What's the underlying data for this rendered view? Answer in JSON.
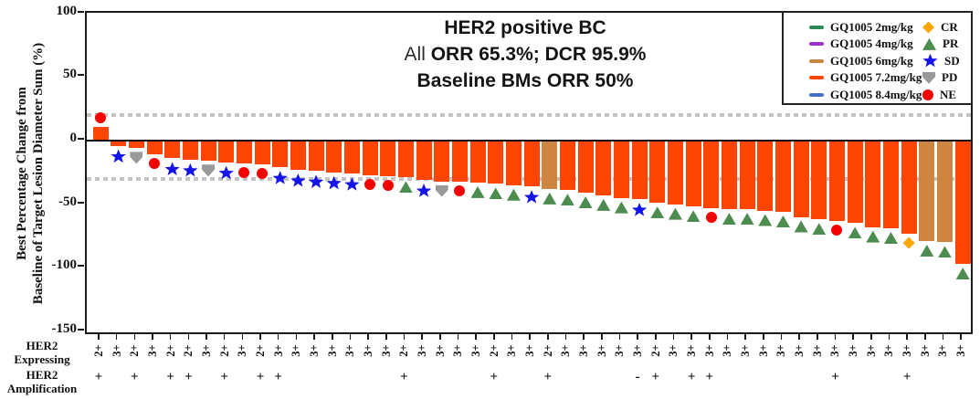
{
  "title": {
    "line1": "HER2 positive BC",
    "line2_highlight": "All",
    "line2_rest": " ORR 65.3%; DCR 95.9%",
    "line3": "Baseline BMs ORR 50%"
  },
  "y_axis": {
    "title_line1": "Best Percentage Change from",
    "title_line2": "Baseline of Target Lesion Diameter Sum (%)",
    "ticks": [
      "100",
      "50",
      "0",
      "-50",
      "-100",
      "-150"
    ]
  },
  "row_labels": {
    "expressing_line1": "HER2",
    "expressing_line2": "Expressing",
    "amplification_line1": "HER2",
    "amplification_line2": "Amplification"
  },
  "legend": {
    "doses": [
      {
        "label": "GQ1005 2mg/kg",
        "color": "#2E8B57"
      },
      {
        "label": "GQ1005 4mg/kg",
        "color": "#9932CC"
      },
      {
        "label": "GQ1005 6mg/kg",
        "color": "#CD853F"
      },
      {
        "label": "GQ1005 7.2mg/kg",
        "color": "#FF4500"
      },
      {
        "label": "GQ1005 8.4mg/kg",
        "color": "#4472C4"
      }
    ],
    "responses": [
      {
        "code": "CR",
        "shape": "diamond",
        "color": "#FFA500"
      },
      {
        "code": "PR",
        "shape": "triangle",
        "color": "#4C8C4F"
      },
      {
        "code": "SD",
        "shape": "star",
        "color": "#1414E8"
      },
      {
        "code": "PD",
        "shape": "pentagon-down",
        "color": "#999999"
      },
      {
        "code": "NE",
        "shape": "circle",
        "color": "#F40000"
      }
    ]
  },
  "chart_data": {
    "type": "bar",
    "title": "HER2 positive BC; All ORR 65.3%; DCR 95.9%; Baseline BMs ORR 50%",
    "ylabel": "Best Percentage Change from Baseline of Target Lesion Diameter Sum (%)",
    "ylim": [
      -150,
      100
    ],
    "grid": false,
    "legend_position": "top-right",
    "reference_lines": [
      20,
      -30
    ],
    "dose_colors": {
      "2": "#2E8B57",
      "4": "#9932CC",
      "6": "#CD853F",
      "7.2": "#FF4500",
      "8.4": "#4472C4"
    },
    "response_colors": {
      "CR": "#FFA500",
      "PR": "#4C8C4F",
      "SD": "#1414E8",
      "PD": "#999999",
      "NE": "#F40000"
    },
    "response_shapes": {
      "CR": "diamond",
      "PR": "triangle",
      "SD": "star",
      "PD": "pentagon-down",
      "NE": "circle"
    },
    "patients": [
      {
        "v": 11,
        "dose": "7.2",
        "resp": "NE",
        "her2": "2+",
        "amp": "+"
      },
      {
        "v": -4,
        "dose": "7.2",
        "resp": "SD",
        "her2": "3+",
        "amp": ""
      },
      {
        "v": -6,
        "dose": "7.2",
        "resp": "PD",
        "her2": "2+",
        "amp": "+"
      },
      {
        "v": -11,
        "dose": "7.2",
        "resp": "NE",
        "her2": "3+",
        "amp": ""
      },
      {
        "v": -14,
        "dose": "7.2",
        "resp": "SD",
        "her2": "2+",
        "amp": "+"
      },
      {
        "v": -15,
        "dose": "7.2",
        "resp": "SD",
        "her2": "2+",
        "amp": "+"
      },
      {
        "v": -16,
        "dose": "7.2",
        "resp": "PD",
        "her2": "3+",
        "amp": ""
      },
      {
        "v": -17,
        "dose": "7.2",
        "resp": "SD",
        "her2": "2+",
        "amp": "+"
      },
      {
        "v": -18,
        "dose": "7.2",
        "resp": "NE",
        "her2": "3+",
        "amp": ""
      },
      {
        "v": -19,
        "dose": "7.2",
        "resp": "NE",
        "her2": "2+",
        "amp": "+"
      },
      {
        "v": -21,
        "dose": "7.2",
        "resp": "SD",
        "her2": "3+",
        "amp": "+"
      },
      {
        "v": -23,
        "dose": "7.2",
        "resp": "SD",
        "her2": "3+",
        "amp": ""
      },
      {
        "v": -24,
        "dose": "7.2",
        "resp": "SD",
        "her2": "3+",
        "amp": ""
      },
      {
        "v": -25,
        "dose": "7.2",
        "resp": "SD",
        "her2": "3+",
        "amp": ""
      },
      {
        "v": -26,
        "dose": "7.2",
        "resp": "SD",
        "her2": "3+",
        "amp": ""
      },
      {
        "v": -27,
        "dose": "7.2",
        "resp": "NE",
        "her2": "3+",
        "amp": ""
      },
      {
        "v": -28,
        "dose": "7.2",
        "resp": "NE",
        "her2": "3+",
        "amp": ""
      },
      {
        "v": -29,
        "dose": "7.2",
        "resp": "PR",
        "her2": "2+",
        "amp": "+"
      },
      {
        "v": -31,
        "dose": "7.2",
        "resp": "SD",
        "her2": "3+",
        "amp": ""
      },
      {
        "v": -32,
        "dose": "7.2",
        "resp": "PD",
        "her2": "3+",
        "amp": ""
      },
      {
        "v": -32,
        "dose": "7.2",
        "resp": "NE",
        "her2": "3+",
        "amp": ""
      },
      {
        "v": -33,
        "dose": "7.2",
        "resp": "PR",
        "her2": "3+",
        "amp": ""
      },
      {
        "v": -34,
        "dose": "7.2",
        "resp": "PR",
        "her2": "2+",
        "amp": "+"
      },
      {
        "v": -35,
        "dose": "7.2",
        "resp": "PR",
        "her2": "3+",
        "amp": ""
      },
      {
        "v": -36,
        "dose": "7.2",
        "resp": "SD",
        "her2": "3+",
        "amp": ""
      },
      {
        "v": -38,
        "dose": "6",
        "resp": "PR",
        "her2": "2+",
        "amp": "+"
      },
      {
        "v": -39,
        "dose": "7.2",
        "resp": "PR",
        "her2": "3+",
        "amp": ""
      },
      {
        "v": -41,
        "dose": "7.2",
        "resp": "PR",
        "her2": "3+",
        "amp": ""
      },
      {
        "v": -43,
        "dose": "7.2",
        "resp": "PR",
        "her2": "3+",
        "amp": ""
      },
      {
        "v": -45,
        "dose": "7.2",
        "resp": "PR",
        "her2": "3+",
        "amp": ""
      },
      {
        "v": -46,
        "dose": "7.2",
        "resp": "SD",
        "her2": "3+",
        "amp": "-"
      },
      {
        "v": -49,
        "dose": "7.2",
        "resp": "PR",
        "her2": "2+",
        "amp": "+"
      },
      {
        "v": -50,
        "dose": "7.2",
        "resp": "PR",
        "her2": "3+",
        "amp": ""
      },
      {
        "v": -52,
        "dose": "7.2",
        "resp": "PR",
        "her2": "3+",
        "amp": "+"
      },
      {
        "v": -53,
        "dose": "7.2",
        "resp": "NE",
        "her2": "3+",
        "amp": "+"
      },
      {
        "v": -54,
        "dose": "7.2",
        "resp": "PR",
        "her2": "3+",
        "amp": ""
      },
      {
        "v": -54,
        "dose": "7.2",
        "resp": "PR",
        "her2": "3+",
        "amp": ""
      },
      {
        "v": -55,
        "dose": "7.2",
        "resp": "PR",
        "her2": "3+",
        "amp": ""
      },
      {
        "v": -56,
        "dose": "7.2",
        "resp": "PR",
        "her2": "3+",
        "amp": ""
      },
      {
        "v": -60,
        "dose": "7.2",
        "resp": "PR",
        "her2": "3+",
        "amp": ""
      },
      {
        "v": -62,
        "dose": "7.2",
        "resp": "PR",
        "her2": "3+",
        "amp": ""
      },
      {
        "v": -63,
        "dose": "7.2",
        "resp": "NE",
        "her2": "3+",
        "amp": "+"
      },
      {
        "v": -65,
        "dose": "7.2",
        "resp": "PR",
        "her2": "3+",
        "amp": ""
      },
      {
        "v": -68,
        "dose": "7.2",
        "resp": "PR",
        "her2": "3+",
        "amp": ""
      },
      {
        "v": -69,
        "dose": "7.2",
        "resp": "PR",
        "her2": "3+",
        "amp": ""
      },
      {
        "v": -73,
        "dose": "7.2",
        "resp": "CR",
        "her2": "3+",
        "amp": "+"
      },
      {
        "v": -79,
        "dose": "6",
        "resp": "PR",
        "her2": "3+",
        "amp": ""
      },
      {
        "v": -80,
        "dose": "6",
        "resp": "PR",
        "her2": "3+",
        "amp": ""
      },
      {
        "v": -97,
        "dose": "7.2",
        "resp": "PR",
        "her2": "3+",
        "amp": ""
      }
    ]
  }
}
